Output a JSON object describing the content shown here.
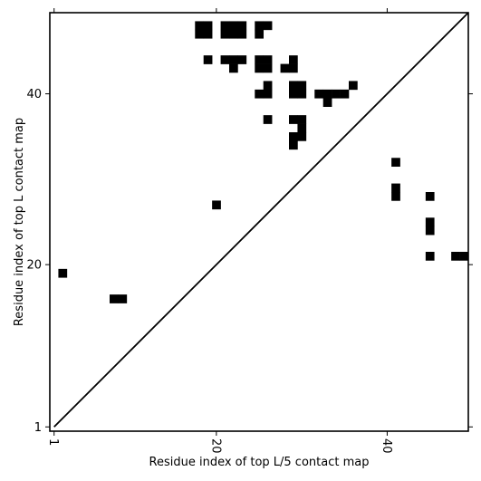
{
  "chart_data": {
    "type": "heatmap",
    "title": "",
    "xlabel": "Residue index of top L/5 contact map",
    "ylabel": "Residue index of top L contact map",
    "xlim": [
      0.5,
      49.5
    ],
    "ylim": [
      0.5,
      49.5
    ],
    "xticks": [
      1,
      20,
      40
    ],
    "yticks": [
      1,
      20,
      40
    ],
    "diagonal": true,
    "cell_color": "#000000",
    "contacts": [
      {
        "x": 18,
        "y": 48
      },
      {
        "x": 19,
        "y": 48
      },
      {
        "x": 18,
        "y": 47
      },
      {
        "x": 19,
        "y": 47
      },
      {
        "x": 21,
        "y": 48
      },
      {
        "x": 22,
        "y": 48
      },
      {
        "x": 23,
        "y": 48
      },
      {
        "x": 21,
        "y": 47
      },
      {
        "x": 22,
        "y": 47
      },
      {
        "x": 23,
        "y": 47
      },
      {
        "x": 25,
        "y": 48
      },
      {
        "x": 26,
        "y": 48
      },
      {
        "x": 25,
        "y": 47
      },
      {
        "x": 19,
        "y": 44
      },
      {
        "x": 21,
        "y": 44
      },
      {
        "x": 22,
        "y": 44
      },
      {
        "x": 23,
        "y": 44
      },
      {
        "x": 22,
        "y": 43
      },
      {
        "x": 25,
        "y": 44
      },
      {
        "x": 26,
        "y": 44
      },
      {
        "x": 25,
        "y": 43
      },
      {
        "x": 26,
        "y": 43
      },
      {
        "x": 28,
        "y": 43
      },
      {
        "x": 29,
        "y": 44
      },
      {
        "x": 29,
        "y": 43
      },
      {
        "x": 26,
        "y": 41
      },
      {
        "x": 25,
        "y": 40
      },
      {
        "x": 26,
        "y": 40
      },
      {
        "x": 29,
        "y": 41
      },
      {
        "x": 30,
        "y": 41
      },
      {
        "x": 29,
        "y": 40
      },
      {
        "x": 30,
        "y": 40
      },
      {
        "x": 32,
        "y": 40
      },
      {
        "x": 33,
        "y": 40
      },
      {
        "x": 34,
        "y": 40
      },
      {
        "x": 35,
        "y": 40
      },
      {
        "x": 33,
        "y": 39
      },
      {
        "x": 36,
        "y": 41
      },
      {
        "x": 26,
        "y": 37
      },
      {
        "x": 29,
        "y": 37
      },
      {
        "x": 30,
        "y": 37
      },
      {
        "x": 30,
        "y": 36
      },
      {
        "x": 29,
        "y": 35
      },
      {
        "x": 30,
        "y": 35
      },
      {
        "x": 29,
        "y": 34
      },
      {
        "x": 41,
        "y": 32
      },
      {
        "x": 41,
        "y": 29
      },
      {
        "x": 41,
        "y": 28
      },
      {
        "x": 45,
        "y": 28
      },
      {
        "x": 45,
        "y": 25
      },
      {
        "x": 45,
        "y": 24
      },
      {
        "x": 45,
        "y": 21
      },
      {
        "x": 48,
        "y": 21
      },
      {
        "x": 49,
        "y": 21
      },
      {
        "x": 20,
        "y": 27
      },
      {
        "x": 2,
        "y": 19
      },
      {
        "x": 8,
        "y": 16
      },
      {
        "x": 9,
        "y": 16
      }
    ]
  }
}
